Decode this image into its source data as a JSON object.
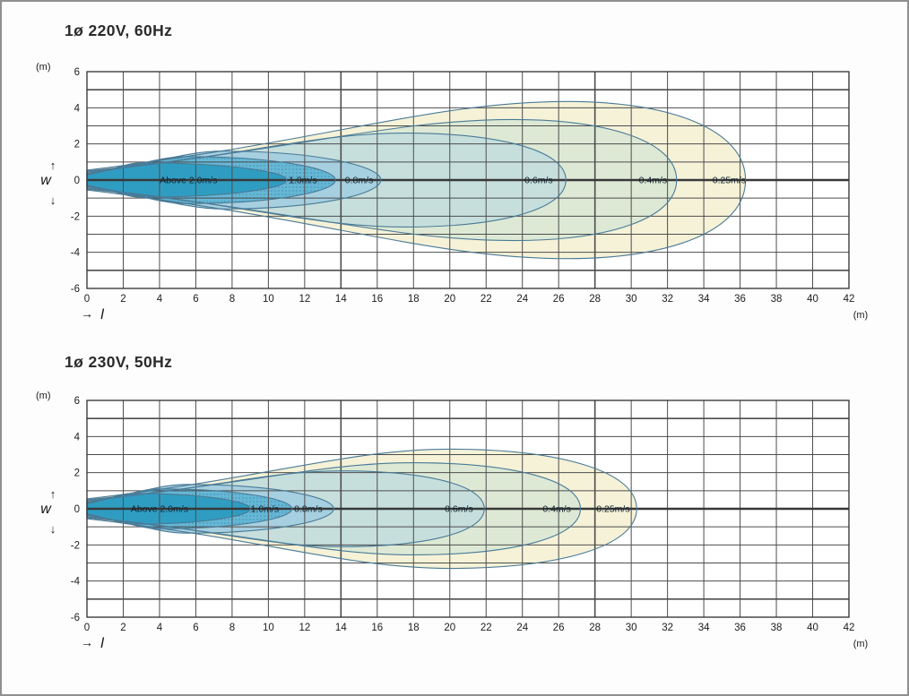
{
  "page": {
    "background": "#fdfdfd",
    "frame_color": "#909090"
  },
  "icons": {
    "up_arrow": "↑",
    "down_arrow": "↓",
    "right_arrow": "→"
  },
  "chart_data": [
    {
      "type": "contour",
      "title": "1ø 220V, 60Hz",
      "x_axis_symbol": "l",
      "y_axis_symbol": "w",
      "x_unit_label": "(m)",
      "y_unit_label": "(m)",
      "xlim": [
        0,
        42
      ],
      "ylim": [
        -6,
        6
      ],
      "x_ticks": [
        0,
        2,
        4,
        6,
        8,
        10,
        12,
        14,
        16,
        18,
        20,
        22,
        24,
        26,
        28,
        30,
        32,
        34,
        36,
        38,
        40,
        42
      ],
      "y_ticks": [
        6,
        4,
        2,
        0,
        -2,
        -4,
        -6
      ],
      "grid": {
        "x_step": 2,
        "y_step": 1,
        "emphasized_x": [
          14,
          28
        ],
        "emphasized_y": [
          5,
          0,
          -5
        ]
      },
      "line_color": "#4a7a96",
      "grid_color": "#4d4d4d",
      "bands": [
        {
          "label": "0.25m/s",
          "velocity_m_s": 0.25,
          "reach_m": 36.3,
          "max_half_width_m": 4.35,
          "x_at_max_m": 26.5,
          "mouth_half_width_m": 0.55,
          "label_x_m": 35.4,
          "fill": "#f5f2d8",
          "textured": false
        },
        {
          "label": "0.4m/s",
          "velocity_m_s": 0.4,
          "reach_m": 32.5,
          "max_half_width_m": 3.35,
          "x_at_max_m": 23.5,
          "mouth_half_width_m": 0.5,
          "label_x_m": 31.2,
          "fill": "#dde9d5",
          "textured": false
        },
        {
          "label": "0.6m/s",
          "velocity_m_s": 0.6,
          "reach_m": 26.4,
          "max_half_width_m": 2.6,
          "x_at_max_m": 17.5,
          "mouth_half_width_m": 0.45,
          "label_x_m": 24.9,
          "fill": "#c6dfdd",
          "textured": false
        },
        {
          "label": "0.8m/s",
          "velocity_m_s": 0.8,
          "reach_m": 16.2,
          "max_half_width_m": 1.6,
          "x_at_max_m": 7.5,
          "mouth_half_width_m": 0.38,
          "label_x_m": 15.0,
          "fill": "#a6cfe0",
          "textured": false
        },
        {
          "label": "1.0m/s",
          "velocity_m_s": 1.0,
          "reach_m": 13.7,
          "max_half_width_m": 1.3,
          "x_at_max_m": 5.5,
          "mouth_half_width_m": 0.33,
          "label_x_m": 11.9,
          "fill": "#66b7d6",
          "textured": true
        },
        {
          "label": "Above 2.0m/s",
          "velocity_m_s": 2.0,
          "reach_m": 11.0,
          "max_half_width_m": 0.95,
          "x_at_max_m": 3.0,
          "mouth_half_width_m": 0.28,
          "label_x_m": 5.6,
          "fill": "#2f9dc2",
          "textured": false
        }
      ]
    },
    {
      "type": "contour",
      "title": "1ø 230V, 50Hz",
      "x_axis_symbol": "l",
      "y_axis_symbol": "w",
      "x_unit_label": "(m)",
      "y_unit_label": "(m)",
      "xlim": [
        0,
        42
      ],
      "ylim": [
        -6,
        6
      ],
      "x_ticks": [
        0,
        2,
        4,
        6,
        8,
        10,
        12,
        14,
        16,
        18,
        20,
        22,
        24,
        26,
        28,
        30,
        32,
        34,
        36,
        38,
        40,
        42
      ],
      "y_ticks": [
        6,
        4,
        2,
        0,
        -2,
        -4,
        -6
      ],
      "grid": {
        "x_step": 2,
        "y_step": 1,
        "emphasized_x": [
          14,
          28
        ],
        "emphasized_y": [
          5,
          0,
          -5
        ]
      },
      "line_color": "#4a7a96",
      "grid_color": "#4d4d4d",
      "bands": [
        {
          "label": "0.25m/s",
          "velocity_m_s": 0.25,
          "reach_m": 30.3,
          "max_half_width_m": 3.3,
          "x_at_max_m": 20.0,
          "mouth_half_width_m": 0.55,
          "label_x_m": 29.0,
          "fill": "#f5f2d8",
          "textured": false
        },
        {
          "label": "0.4m/s",
          "velocity_m_s": 0.4,
          "reach_m": 27.2,
          "max_half_width_m": 2.55,
          "x_at_max_m": 18.0,
          "mouth_half_width_m": 0.5,
          "label_x_m": 25.9,
          "fill": "#dde9d5",
          "textured": false
        },
        {
          "label": "0.6m/s",
          "velocity_m_s": 0.6,
          "reach_m": 21.9,
          "max_half_width_m": 2.1,
          "x_at_max_m": 14.0,
          "mouth_half_width_m": 0.45,
          "label_x_m": 20.5,
          "fill": "#c6dfdd",
          "textured": false
        },
        {
          "label": "0.8m/s",
          "velocity_m_s": 0.8,
          "reach_m": 13.6,
          "max_half_width_m": 1.35,
          "x_at_max_m": 5.5,
          "mouth_half_width_m": 0.38,
          "label_x_m": 12.2,
          "fill": "#a6cfe0",
          "textured": false
        },
        {
          "label": "1.0m/s",
          "velocity_m_s": 1.0,
          "reach_m": 11.3,
          "max_half_width_m": 1.1,
          "x_at_max_m": 4.0,
          "mouth_half_width_m": 0.33,
          "label_x_m": 9.8,
          "fill": "#66b7d6",
          "textured": true
        },
        {
          "label": "Above 2.0m/s",
          "velocity_m_s": 2.0,
          "reach_m": 9.0,
          "max_half_width_m": 0.85,
          "x_at_max_m": 2.5,
          "mouth_half_width_m": 0.28,
          "label_x_m": 4.0,
          "fill": "#2f9dc2",
          "textured": false
        }
      ]
    }
  ]
}
